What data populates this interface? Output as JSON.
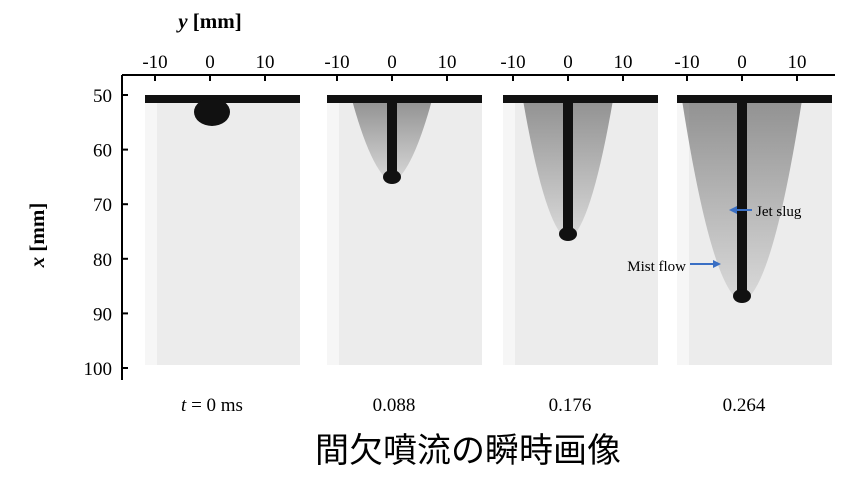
{
  "axes": {
    "y_label": {
      "var": "y",
      "unit": "[mm]"
    },
    "x_label": {
      "var": "x",
      "unit": "[mm]"
    },
    "top_ticks": [
      [
        -10,
        0,
        10
      ],
      [
        -10,
        0,
        10
      ],
      [
        -10,
        0,
        10
      ],
      [
        -10,
        0,
        10
      ]
    ],
    "left_ticks": [
      50,
      60,
      70,
      80,
      90,
      100
    ]
  },
  "panels": [
    {
      "time": {
        "var": "t",
        "text": "= 0 ms"
      }
    },
    {
      "time": {
        "text": "0.088"
      }
    },
    {
      "time": {
        "text": "0.176"
      }
    },
    {
      "time": {
        "text": "0.264"
      }
    }
  ],
  "annotations": {
    "jet_slug": "Jet slug",
    "mist_flow": "Mist flow"
  },
  "caption": "間欠噴流の瞬時画像"
}
